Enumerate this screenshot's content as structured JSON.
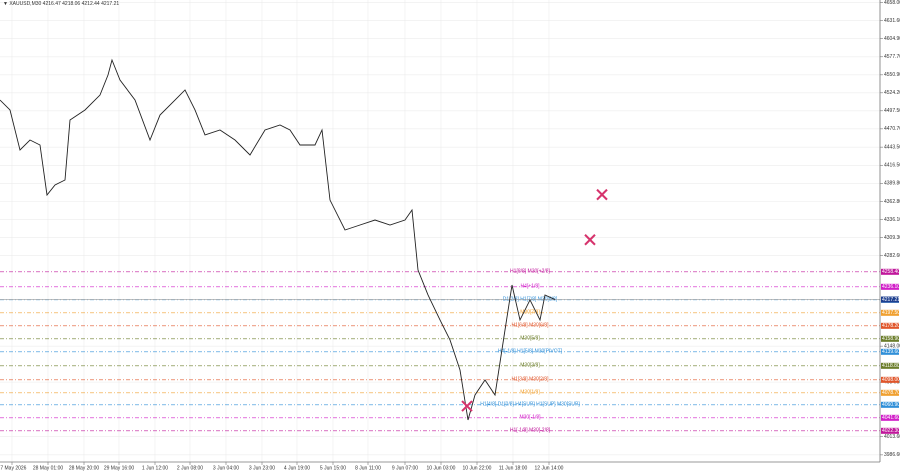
{
  "chart_data": {
    "type": "line",
    "title": "▼ XAUUSD,M30  4216.47 4218.06 4212.44 4217.21",
    "series": [
      {
        "name": "XAUUSD",
        "color": "#222222",
        "x": [
          0,
          10,
          20,
          30,
          40,
          47,
          55,
          65,
          70,
          85,
          100,
          108,
          112,
          120,
          135,
          150,
          160,
          175,
          185,
          195,
          205,
          220,
          235,
          250,
          265,
          280,
          290,
          300,
          315,
          322,
          330,
          345,
          360,
          375,
          390,
          405,
          412,
          418,
          428,
          440,
          450,
          460,
          468,
          475,
          485,
          495,
          505,
          512,
          520,
          530,
          540,
          545,
          555
        ],
        "values": [
          4513.5,
          4498.7,
          4439.3,
          4454.1,
          4446.7,
          4372.5,
          4387.3,
          4394.7,
          4483.8,
          4498.7,
          4520.9,
          4550.6,
          4572.9,
          4543.2,
          4513.5,
          4454.1,
          4491.2,
          4513.5,
          4528.4,
          4498.7,
          4461.6,
          4469.0,
          4454.1,
          4431.9,
          4469.0,
          4476.4,
          4469.0,
          4446.7,
          4446.7,
          4469.0,
          4365.0,
          4320.5,
          4327.9,
          4335.3,
          4327.9,
          4335.3,
          4350.2,
          4261.1,
          4224.0,
          4186.9,
          4157.2,
          4112.6,
          4038.4,
          4075.5,
          4097.8,
          4075.5,
          4172.0,
          4238.8,
          4186.9,
          4216.6,
          4186.9,
          4224.0,
          4217.2
        ]
      }
    ],
    "last_price": 4217.21,
    "levels": [
      {
        "value": 4258.4,
        "label": "4258.40",
        "text": "H1[8/8] M30[+2/8]",
        "color": "#c0179b"
      },
      {
        "value": 4236.1,
        "label": "4236.10",
        "text": "H4[+1/8]",
        "color": "#d11ec8"
      },
      {
        "value": 4216.8,
        "label": "4216.80",
        "text": "D1[2/8] H1[7/8] M30[8/8]",
        "color": "#2f8fd8"
      },
      {
        "value": 4197.5,
        "label": "4197.50",
        "text": "M30[7/8]",
        "color": "#f0a030"
      },
      {
        "value": 4178.2,
        "label": "4178.20",
        "text": "H1[6/8] M30[6/8]",
        "color": "#e0552a"
      },
      {
        "value": 4158.9,
        "label": "4158.90",
        "text": "M30[5/8]",
        "color": "#6b7d2a"
      },
      {
        "value": 4139.6,
        "label": "4139.60",
        "text": "H4[-1/8] H1[5/8] M30[PIVOT]",
        "color": "#2f8fd8"
      },
      {
        "value": 4118.8,
        "label": "4118.80",
        "text": "M30[3/8]",
        "color": "#6b7d2a"
      },
      {
        "value": 4098.0,
        "label": "4098.00",
        "text": "H1[3/8] M30[2/8]",
        "color": "#e0552a"
      },
      {
        "value": 4078.7,
        "label": "4078.70",
        "text": "M30[1/8]",
        "color": "#f0a030"
      },
      {
        "value": 4060.9,
        "label": "4060.90",
        "text": "H1[4/8] D1[0/8] H4[SUP] H1[SUP] M30[SUP]",
        "color": "#2f8fd8"
      },
      {
        "value": 4041.6,
        "label": "4041.60",
        "text": "M30[-1/8]",
        "color": "#d11ec8"
      },
      {
        "value": 4022.3,
        "label": "4022.30",
        "text": "H1[-1/8] M30[-2/8]",
        "color": "#c0179b"
      }
    ],
    "markers": [
      {
        "x": 602,
        "y": 4373,
        "color": "#d6336c"
      },
      {
        "x": 590,
        "y": 4306,
        "color": "#d6336c"
      },
      {
        "x": 467,
        "y": 4059,
        "color": "#d6336c"
      }
    ],
    "xlim": [
      0,
      880
    ],
    "xticks": [
      {
        "value": 12,
        "label": "27 May 2026"
      },
      {
        "value": 48,
        "label": "28 May 01:00"
      },
      {
        "value": 84,
        "label": "28 May 20:00"
      },
      {
        "value": 119,
        "label": "29 May 16:00"
      },
      {
        "value": 155,
        "label": "1 Jun 12:00"
      },
      {
        "value": 190,
        "label": "2 Jun 08:00"
      },
      {
        "value": 226,
        "label": "3 Jun 04:00"
      },
      {
        "value": 262,
        "label": "3 Jun 23:00"
      },
      {
        "value": 297,
        "label": "4 Jun 19:00"
      },
      {
        "value": 333,
        "label": "5 Jun 15:00"
      },
      {
        "value": 368,
        "label": "8 Jun 11:00"
      },
      {
        "value": 405,
        "label": "9 Jun 07:00"
      },
      {
        "value": 441,
        "label": "10 Jun 03:00"
      },
      {
        "value": 477,
        "label": "10 Jun 22:00"
      },
      {
        "value": 513,
        "label": "11 Jun 18:00"
      },
      {
        "value": 549,
        "label": "12 Jun 14:00"
      }
    ],
    "ylim": [
      3976,
      4662
    ],
    "yticks": [
      {
        "value": 4658,
        "label": "4658.00"
      },
      {
        "value": 4631.6,
        "label": "4631.60"
      },
      {
        "value": 4604.9,
        "label": "4604.90"
      },
      {
        "value": 4577.7,
        "label": "4577.70"
      },
      {
        "value": 4550.9,
        "label": "4550.90"
      },
      {
        "value": 4524.2,
        "label": "4524.20"
      },
      {
        "value": 4497.5,
        "label": "4497.50"
      },
      {
        "value": 4470.7,
        "label": "4470.70"
      },
      {
        "value": 4443.5,
        "label": "4443.50"
      },
      {
        "value": 4416.5,
        "label": "4416.50"
      },
      {
        "value": 4389.8,
        "label": "4389.80"
      },
      {
        "value": 4362.8,
        "label": "4362.80"
      },
      {
        "value": 4336.1,
        "label": "4336.10"
      },
      {
        "value": 4309.3,
        "label": "4309.30"
      },
      {
        "value": 4282.6,
        "label": "4282.60"
      },
      {
        "value": 4148,
        "label": "4148.00"
      },
      {
        "value": 4094.6,
        "label": "4094.60"
      },
      {
        "value": 4013.6,
        "label": "4013.60"
      },
      {
        "value": 3986.6,
        "label": "3986.60"
      }
    ],
    "grid": true
  }
}
